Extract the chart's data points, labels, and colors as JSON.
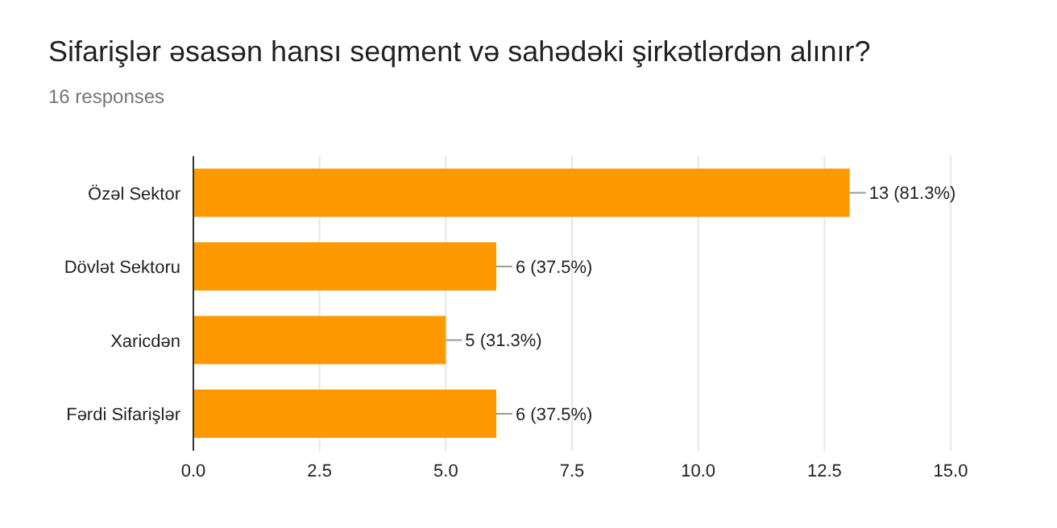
{
  "chart_data": {
    "type": "bar",
    "orientation": "horizontal",
    "title": "Sifarişlər əsasən hansı seqment və sahədəki şirkətlərdən alınır?",
    "subtitle": "16 responses",
    "categories": [
      "Özəl Sektor",
      "Dövlət Sektoru",
      "Xaricdən",
      "Fərdi Sifarişlər"
    ],
    "values": [
      13,
      6,
      5,
      6
    ],
    "value_labels": [
      "13 (81.3%)",
      "6 (37.5%)",
      "5 (31.3%)",
      "6 (37.5%)"
    ],
    "color": "#ff9900",
    "xlim": [
      0,
      15
    ],
    "xticks": [
      {
        "value": 0,
        "label": "0.0"
      },
      {
        "value": 2.5,
        "label": "2.5"
      },
      {
        "value": 5,
        "label": "5.0"
      },
      {
        "value": 7.5,
        "label": "7.5"
      },
      {
        "value": 10,
        "label": "10.0"
      },
      {
        "value": 12.5,
        "label": "12.5"
      },
      {
        "value": 15,
        "label": "15.0"
      }
    ],
    "grid": "x",
    "legend": false
  }
}
